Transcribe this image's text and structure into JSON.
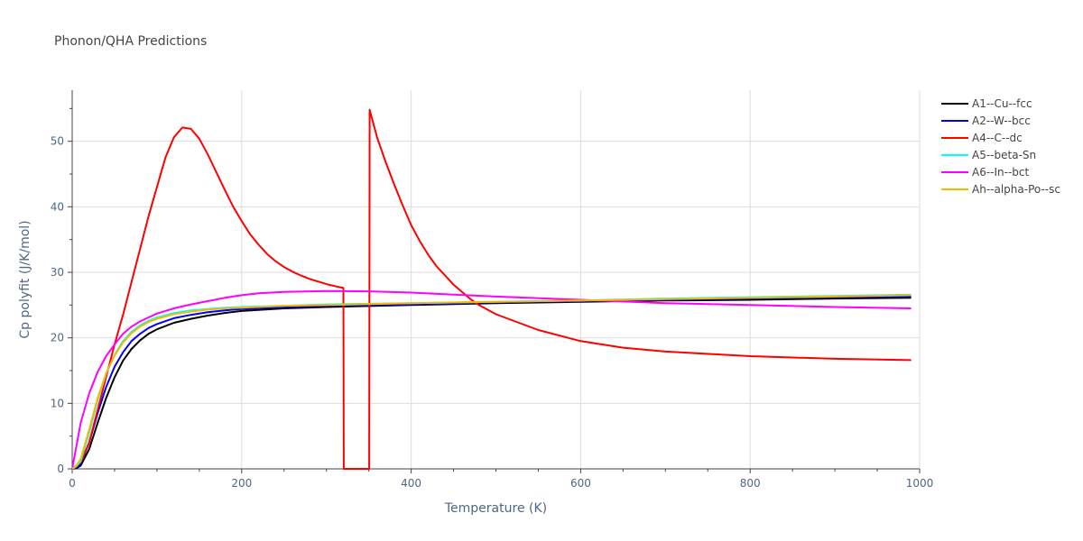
{
  "chart_data": {
    "type": "line",
    "title": "Phonon/QHA Predictions",
    "xlabel": "Temperature (K)",
    "ylabel": "Cp polyfit (J/K/mol)",
    "xlim": [
      0,
      1000
    ],
    "ylim": [
      0,
      57.8
    ],
    "xticks": [
      0,
      200,
      400,
      600,
      800,
      1000
    ],
    "yticks": [
      0,
      10,
      20,
      30,
      40,
      50
    ],
    "x_tick_labels": [
      "0",
      "200",
      "400",
      "600",
      "800",
      "1000"
    ],
    "y_tick_labels": [
      "0",
      "10",
      "20",
      "30",
      "40",
      "50"
    ],
    "grid": true,
    "legend_position": "right",
    "series": [
      {
        "name": "A1--Cu--fcc",
        "color": "#000000",
        "points": [
          [
            0,
            0
          ],
          [
            5,
            0.1
          ],
          [
            10,
            0.5
          ],
          [
            20,
            3
          ],
          [
            30,
            7
          ],
          [
            40,
            10.8
          ],
          [
            50,
            14
          ],
          [
            60,
            16.5
          ],
          [
            70,
            18.3
          ],
          [
            80,
            19.6
          ],
          [
            90,
            20.6
          ],
          [
            100,
            21.3
          ],
          [
            120,
            22.3
          ],
          [
            140,
            22.9
          ],
          [
            160,
            23.4
          ],
          [
            180,
            23.8
          ],
          [
            200,
            24.1
          ],
          [
            250,
            24.5
          ],
          [
            300,
            24.7
          ],
          [
            400,
            25.0
          ],
          [
            500,
            25.3
          ],
          [
            600,
            25.5
          ],
          [
            700,
            25.7
          ],
          [
            800,
            25.8
          ],
          [
            900,
            26.0
          ],
          [
            990,
            26.1
          ]
        ]
      },
      {
        "name": "A2--W--bcc",
        "color": "#0000ff",
        "points": [
          [
            0,
            0
          ],
          [
            5,
            0.2
          ],
          [
            10,
            0.8
          ],
          [
            20,
            4
          ],
          [
            30,
            8.5
          ],
          [
            40,
            12.5
          ],
          [
            50,
            15.6
          ],
          [
            60,
            17.8
          ],
          [
            70,
            19.5
          ],
          [
            80,
            20.6
          ],
          [
            90,
            21.5
          ],
          [
            100,
            22.1
          ],
          [
            120,
            23.0
          ],
          [
            140,
            23.5
          ],
          [
            160,
            23.9
          ],
          [
            180,
            24.2
          ],
          [
            200,
            24.4
          ],
          [
            250,
            24.7
          ],
          [
            300,
            24.9
          ],
          [
            400,
            25.1
          ],
          [
            500,
            25.4
          ],
          [
            600,
            25.6
          ],
          [
            700,
            25.8
          ],
          [
            800,
            26.0
          ],
          [
            900,
            26.2
          ],
          [
            990,
            26.3
          ]
        ]
      },
      {
        "name": "A4--C--dc",
        "color": "#ff0000",
        "points": [
          [
            0,
            0
          ],
          [
            10,
            1
          ],
          [
            20,
            4
          ],
          [
            30,
            9
          ],
          [
            40,
            14
          ],
          [
            50,
            19
          ],
          [
            60,
            23.5
          ],
          [
            70,
            28.5
          ],
          [
            80,
            33.5
          ],
          [
            90,
            38.5
          ],
          [
            100,
            43
          ],
          [
            110,
            47.5
          ],
          [
            120,
            50.6
          ],
          [
            130,
            52.1
          ],
          [
            140,
            51.9
          ],
          [
            150,
            50.4
          ],
          [
            160,
            48
          ],
          [
            170,
            45.3
          ],
          [
            180,
            42.6
          ],
          [
            190,
            40
          ],
          [
            200,
            37.8
          ],
          [
            210,
            35.8
          ],
          [
            220,
            34.2
          ],
          [
            230,
            32.8
          ],
          [
            240,
            31.7
          ],
          [
            250,
            30.8
          ],
          [
            260,
            30.1
          ],
          [
            270,
            29.5
          ],
          [
            280,
            29.0
          ],
          [
            290,
            28.6
          ],
          [
            300,
            28.2
          ],
          [
            310,
            27.9
          ],
          [
            320,
            27.6
          ],
          [
            320.5,
            0
          ],
          [
            350.5,
            0
          ],
          [
            351,
            54.8
          ],
          [
            360,
            50.5
          ],
          [
            370,
            46.8
          ],
          [
            380,
            43.4
          ],
          [
            390,
            40.2
          ],
          [
            400,
            37.2
          ],
          [
            410,
            34.8
          ],
          [
            420,
            32.7
          ],
          [
            430,
            30.9
          ],
          [
            440,
            29.5
          ],
          [
            450,
            28.1
          ],
          [
            460,
            27
          ],
          [
            470,
            25.9
          ],
          [
            480,
            25
          ],
          [
            500,
            23.6
          ],
          [
            550,
            21.2
          ],
          [
            600,
            19.5
          ],
          [
            650,
            18.5
          ],
          [
            700,
            17.9
          ],
          [
            800,
            17.2
          ],
          [
            900,
            16.8
          ],
          [
            990,
            16.6
          ]
        ]
      },
      {
        "name": "A5--beta-Sn",
        "color": "#00ffff",
        "points": [
          [
            0,
            0
          ],
          [
            5,
            0.4
          ],
          [
            10,
            1.2
          ],
          [
            20,
            5.5
          ],
          [
            30,
            10.5
          ],
          [
            40,
            14.5
          ],
          [
            50,
            17.4
          ],
          [
            60,
            19.5
          ],
          [
            70,
            20.9
          ],
          [
            80,
            21.9
          ],
          [
            90,
            22.6
          ],
          [
            100,
            23.1
          ],
          [
            120,
            23.8
          ],
          [
            140,
            24.2
          ],
          [
            160,
            24.4
          ],
          [
            180,
            24.6
          ],
          [
            200,
            24.7
          ],
          [
            250,
            24.9
          ],
          [
            300,
            25.1
          ],
          [
            400,
            25.3
          ],
          [
            500,
            25.5
          ],
          [
            600,
            25.7
          ],
          [
            700,
            26.0
          ],
          [
            800,
            26.2
          ],
          [
            900,
            26.4
          ],
          [
            990,
            26.6
          ]
        ]
      },
      {
        "name": "A6--In--bct",
        "color": "#ff00ff",
        "points": [
          [
            0,
            0
          ],
          [
            5,
            3.5
          ],
          [
            10,
            7
          ],
          [
            20,
            11.5
          ],
          [
            30,
            14.8
          ],
          [
            40,
            17.2
          ],
          [
            50,
            19
          ],
          [
            60,
            20.6
          ],
          [
            70,
            21.7
          ],
          [
            80,
            22.5
          ],
          [
            90,
            23.1
          ],
          [
            100,
            23.7
          ],
          [
            120,
            24.5
          ],
          [
            140,
            25.1
          ],
          [
            160,
            25.6
          ],
          [
            180,
            26.1
          ],
          [
            200,
            26.5
          ],
          [
            220,
            26.8
          ],
          [
            250,
            27.0
          ],
          [
            300,
            27.15
          ],
          [
            350,
            27.1
          ],
          [
            400,
            26.9
          ],
          [
            450,
            26.6
          ],
          [
            500,
            26.3
          ],
          [
            600,
            25.8
          ],
          [
            700,
            25.3
          ],
          [
            800,
            25.0
          ],
          [
            900,
            24.7
          ],
          [
            990,
            24.5
          ]
        ]
      },
      {
        "name": "Ah--alpha-Po--sc",
        "color": "#f5b800",
        "points": [
          [
            0,
            0
          ],
          [
            5,
            0.5
          ],
          [
            10,
            1.5
          ],
          [
            20,
            6
          ],
          [
            30,
            10.8
          ],
          [
            40,
            14.6
          ],
          [
            50,
            17.3
          ],
          [
            60,
            19.3
          ],
          [
            70,
            20.7
          ],
          [
            80,
            21.7
          ],
          [
            90,
            22.4
          ],
          [
            100,
            22.9
          ],
          [
            120,
            23.6
          ],
          [
            140,
            24.0
          ],
          [
            160,
            24.3
          ],
          [
            180,
            24.5
          ],
          [
            200,
            24.6
          ],
          [
            250,
            24.9
          ],
          [
            300,
            25.0
          ],
          [
            400,
            25.3
          ],
          [
            500,
            25.5
          ],
          [
            600,
            25.7
          ],
          [
            700,
            25.9
          ],
          [
            800,
            26.1
          ],
          [
            900,
            26.3
          ],
          [
            990,
            26.5
          ]
        ]
      }
    ]
  }
}
